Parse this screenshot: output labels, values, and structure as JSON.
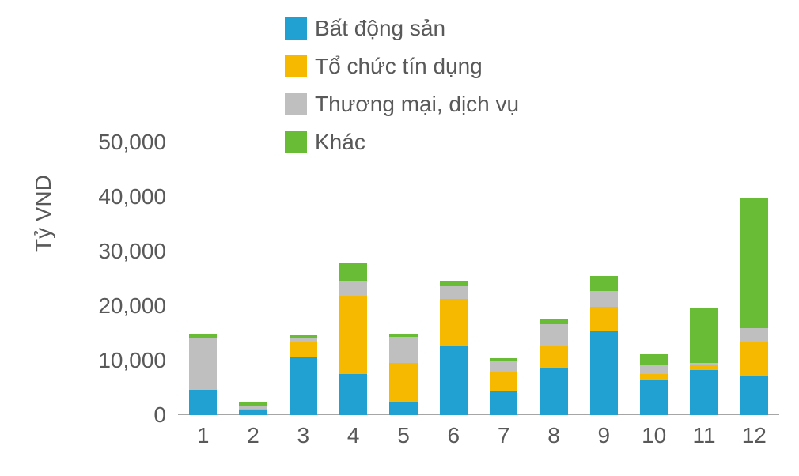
{
  "chart": {
    "type": "stacked-bar",
    "background_color": "#ffffff",
    "tick_font_color": "#595959",
    "tick_font_size": 28,
    "ylabel": "Tỷ VND",
    "ylabel_font_size": 28,
    "ylabel_color": "#595959",
    "ylim": [
      0,
      50000
    ],
    "ytick_step": 10000,
    "ytick_labels": [
      "0",
      "10,000",
      "20,000",
      "30,000",
      "40,000",
      "50,000"
    ],
    "baseline_color": "#a6a6a6",
    "categories": [
      "1",
      "2",
      "3",
      "4",
      "5",
      "6",
      "7",
      "8",
      "9",
      "10",
      "11",
      "12"
    ],
    "bar_width_ratio": 0.56,
    "legend": {
      "position": "top",
      "font_size": 28,
      "font_color": "#595959",
      "swatch_size": 28,
      "items": [
        {
          "key": "bat_dong_san",
          "label": "Bất động sản",
          "color": "#21a0d2"
        },
        {
          "key": "to_chuc_tin_dung",
          "label": "Tổ chức tín dụng",
          "color": "#f6b900"
        },
        {
          "key": "thuong_mai_dich_vu",
          "label": "Thương mại, dịch vụ",
          "color": "#bfbfbf"
        },
        {
          "key": "khac",
          "label": "Khác",
          "color": "#68bc36"
        }
      ]
    },
    "series": {
      "bat_dong_san": [
        4600,
        900,
        10700,
        7600,
        2500,
        12700,
        4400,
        8600,
        15500,
        6400,
        8200,
        7100
      ],
      "to_chuc_tin_dung": [
        0,
        300,
        2700,
        14300,
        7000,
        8600,
        3600,
        4200,
        4400,
        1100,
        900,
        6200
      ],
      "thuong_mai_dich_vu": [
        9600,
        600,
        600,
        2700,
        4900,
        2400,
        1900,
        3800,
        2800,
        1700,
        400,
        2600
      ],
      "khac": [
        700,
        500,
        600,
        3300,
        400,
        1000,
        500,
        900,
        2800,
        2000,
        10100,
        24000
      ]
    },
    "series_colors": {
      "bat_dong_san": "#21a0d2",
      "to_chuc_tin_dung": "#f6b900",
      "thuong_mai_dich_vu": "#bfbfbf",
      "khac": "#68bc36"
    },
    "series_order": [
      "bat_dong_san",
      "to_chuc_tin_dung",
      "thuong_mai_dich_vu",
      "khac"
    ]
  }
}
